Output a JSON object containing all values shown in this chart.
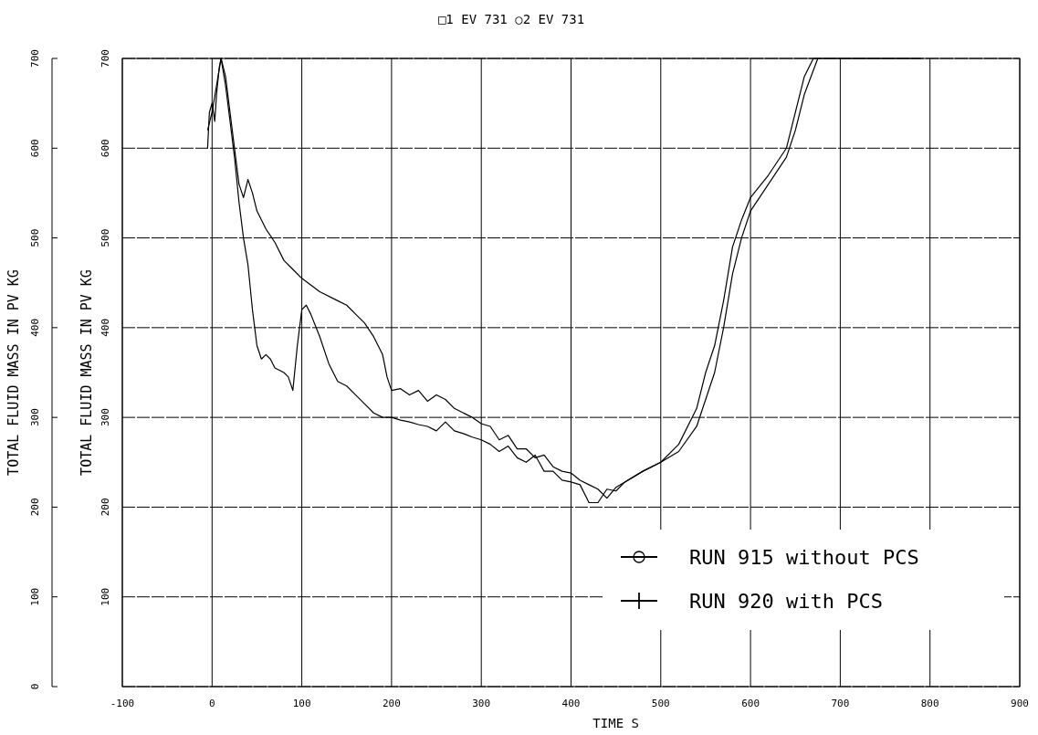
{
  "chart_data": {
    "type": "line",
    "title": "□1 EV   731 ○2 EV   731",
    "xlabel": "TIME   S",
    "ylabel": "TOTAL FLUID MASS IN PV  KG",
    "y2label": "TOTAL FLUID MASS IN PV  KG",
    "xlim": [
      -100,
      900
    ],
    "xticks": [
      -100,
      0,
      100,
      200,
      300,
      400,
      500,
      600,
      700,
      800,
      900
    ],
    "ylim": [
      0,
      700
    ],
    "yticks": [
      0,
      100,
      200,
      300,
      400,
      500,
      600,
      700
    ],
    "y2lim": [
      0,
      700
    ],
    "y2ticks": [
      100,
      200,
      300,
      400,
      500,
      600,
      700
    ],
    "grid": true,
    "legend": "bottom right",
    "line_style": "solid",
    "series": [
      {
        "name": "RUN 915 without PCS",
        "color": "#000000",
        "x": [
          -5,
          0,
          5,
          10,
          15,
          20,
          25,
          30,
          35,
          40,
          45,
          50,
          60,
          70,
          80,
          90,
          100,
          120,
          140,
          150,
          160,
          170,
          180,
          190,
          195,
          200,
          210,
          220,
          230,
          240,
          250,
          260,
          270,
          280,
          290,
          300,
          310,
          320,
          330,
          340,
          350,
          360,
          370,
          380,
          390,
          400,
          410,
          420,
          430,
          440,
          450,
          460,
          480,
          500,
          520,
          540,
          550,
          560,
          570,
          580,
          590,
          600,
          620,
          640,
          650,
          660,
          675
        ],
        "values": [
          620,
          640,
          670,
          700,
          680,
          640,
          600,
          560,
          545,
          565,
          550,
          530,
          510,
          495,
          475,
          465,
          455,
          440,
          430,
          425,
          415,
          405,
          390,
          370,
          345,
          330,
          332,
          325,
          330,
          318,
          325,
          320,
          310,
          305,
          300,
          293,
          290,
          275,
          280,
          265,
          265,
          255,
          258,
          245,
          240,
          238,
          230,
          225,
          220,
          210,
          222,
          228,
          240,
          250,
          262,
          290,
          320,
          350,
          400,
          460,
          500,
          530,
          560,
          590,
          620,
          660,
          700
        ]
      },
      {
        "name": "RUN 920 with PCS",
        "color": "#000000",
        "x": [
          -5,
          -3,
          0,
          3,
          5,
          8,
          10,
          15,
          20,
          25,
          30,
          35,
          40,
          45,
          50,
          55,
          60,
          65,
          70,
          80,
          85,
          90,
          95,
          100,
          105,
          110,
          120,
          130,
          140,
          150,
          160,
          170,
          180,
          190,
          200,
          210,
          220,
          230,
          240,
          250,
          260,
          270,
          280,
          290,
          300,
          310,
          320,
          330,
          340,
          350,
          360,
          370,
          380,
          390,
          400,
          410,
          420,
          430,
          440,
          450,
          460,
          480,
          500,
          520,
          540,
          550,
          560,
          570,
          580,
          590,
          600,
          620,
          640,
          650,
          660,
          670,
          710,
          790
        ],
        "values": [
          600,
          640,
          650,
          630,
          660,
          690,
          700,
          670,
          630,
          590,
          540,
          500,
          470,
          420,
          380,
          365,
          370,
          365,
          355,
          350,
          345,
          330,
          380,
          420,
          425,
          415,
          390,
          360,
          340,
          335,
          325,
          315,
          305,
          300,
          300,
          297,
          295,
          292,
          290,
          285,
          295,
          285,
          282,
          278,
          275,
          270,
          262,
          268,
          255,
          250,
          258,
          240,
          240,
          230,
          228,
          225,
          205,
          205,
          220,
          218,
          228,
          240,
          250,
          270,
          310,
          350,
          380,
          430,
          490,
          520,
          545,
          570,
          600,
          640,
          680,
          700,
          700,
          700
        ]
      }
    ]
  }
}
